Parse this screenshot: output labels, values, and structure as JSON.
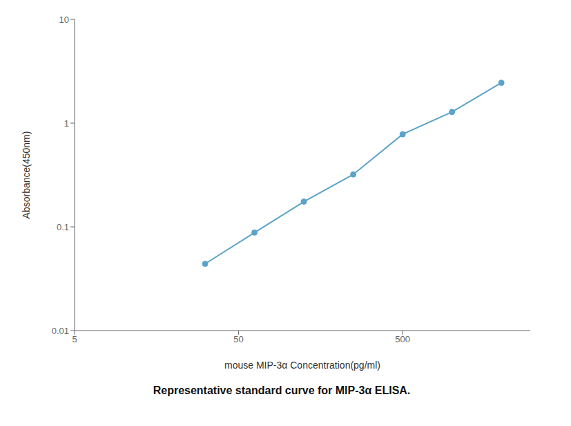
{
  "chart_data": {
    "type": "line",
    "title": "Representative standard curve for MIP-3α ELISA.",
    "x_label": "mouse MIP-3α Concentration(pg/ml)",
    "y_label": "Absorbance(450nm)",
    "x": [
      31.25,
      62.5,
      125,
      250,
      500,
      1000,
      2000
    ],
    "values": [
      0.044,
      0.088,
      0.175,
      0.32,
      0.78,
      1.28,
      2.45
    ],
    "color": "#5ba3c9",
    "marker": "circle",
    "line_style": "solid",
    "log": true,
    "xlim": [
      5,
      3000
    ],
    "ylim": [
      0.01,
      10
    ],
    "xticks": [
      5,
      50,
      500
    ],
    "yticks": [
      0.01,
      0.1,
      1,
      10
    ],
    "grid": false
  }
}
